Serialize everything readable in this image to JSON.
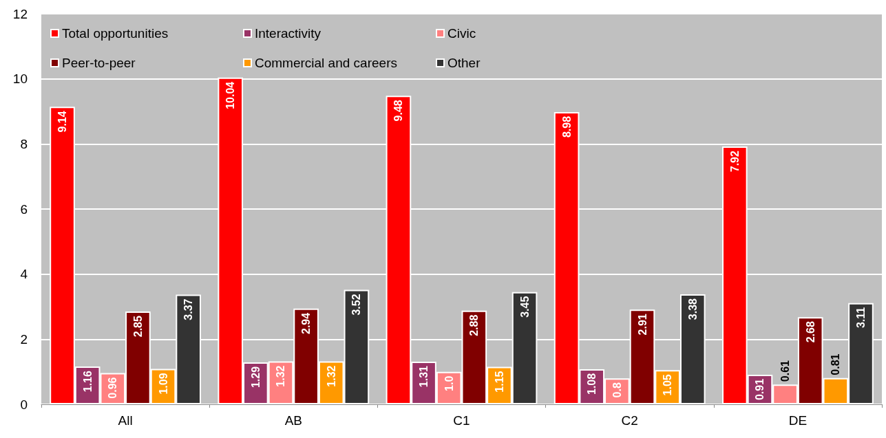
{
  "chart_data": {
    "type": "bar",
    "categories": [
      "All",
      "AB",
      "C1",
      "C2",
      "DE"
    ],
    "series": [
      {
        "name": "Total opportunities",
        "color": "#ff0000",
        "values": [
          9.14,
          10.04,
          9.48,
          8.98,
          7.92
        ],
        "value_labels": [
          "9.14",
          "10.04",
          "9.48",
          "8.98",
          "7.92"
        ]
      },
      {
        "name": "Interactivity",
        "color": "#993366",
        "values": [
          1.16,
          1.29,
          1.31,
          1.08,
          0.91
        ],
        "value_labels": [
          "1.16",
          "1.29",
          "1.31",
          "1.08",
          "0.91"
        ]
      },
      {
        "name": "Civic",
        "color": "#ff8080",
        "values": [
          0.96,
          1.32,
          1.0,
          0.8,
          0.61
        ],
        "value_labels": [
          "0.96",
          "1.32",
          "1.0",
          "0.8",
          "0.61"
        ]
      },
      {
        "name": "Peer-to-peer",
        "color": "#800000",
        "values": [
          2.85,
          2.94,
          2.88,
          2.91,
          2.68
        ],
        "value_labels": [
          "2.85",
          "2.94",
          "2.88",
          "2.91",
          "2.68"
        ]
      },
      {
        "name": "Commercial and careers",
        "color": "#ff9900",
        "values": [
          1.09,
          1.32,
          1.15,
          1.05,
          0.81
        ],
        "value_labels": [
          "1.09",
          "1.32",
          "1.15",
          "1.05",
          "0.81"
        ]
      },
      {
        "name": "Other",
        "color": "#333333",
        "values": [
          3.37,
          3.52,
          3.45,
          3.38,
          3.11
        ],
        "value_labels": [
          "3.37",
          "3.52",
          "3.45",
          "3.38",
          "3.11"
        ]
      }
    ],
    "ylim": [
      0,
      12
    ],
    "yticks": [
      0,
      2,
      4,
      6,
      8,
      10,
      12
    ],
    "grid": "y",
    "legend": "top left"
  }
}
